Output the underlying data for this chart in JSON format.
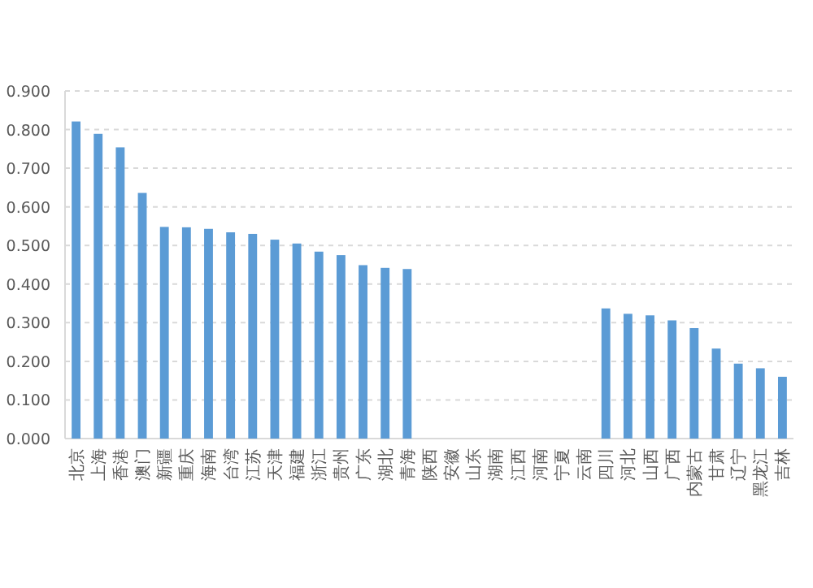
{
  "chart_data": {
    "type": "bar",
    "categories": [
      "北京",
      "上海",
      "香港",
      "澳门",
      "新疆",
      "重庆",
      "海南",
      "台湾",
      "江苏",
      "天津",
      "福建",
      "浙江",
      "贵州",
      "广东",
      "湖北",
      "青海",
      "陕西",
      "安徽",
      "山东",
      "湖南",
      "江西",
      "河南",
      "宁夏",
      "云南",
      "四川",
      "河北",
      "山西",
      "广西",
      "内蒙古",
      "甘肃",
      "辽宁",
      "黑龙江",
      "吉林"
    ],
    "values": [
      0.821,
      0.789,
      0.754,
      0.636,
      0.548,
      0.547,
      0.543,
      0.534,
      0.53,
      0.515,
      0.505,
      0.484,
      0.475,
      0.449,
      0.442,
      0.439,
      null,
      null,
      null,
      null,
      null,
      null,
      null,
      null,
      0.337,
      0.323,
      0.319,
      0.306,
      0.286,
      0.233,
      0.194,
      0.182,
      0.16
    ],
    "color": "#5b9bd5",
    "ylim": [
      0,
      0.9
    ],
    "yticks": [
      {
        "value": 0,
        "label": "0.000"
      },
      {
        "value": 0.1,
        "label": "0.100"
      },
      {
        "value": 0.2,
        "label": "0.200"
      },
      {
        "value": 0.3,
        "label": "0.300"
      },
      {
        "value": 0.4,
        "label": "0.400"
      },
      {
        "value": 0.5,
        "label": "0.500"
      },
      {
        "value": 0.6,
        "label": "0.600"
      },
      {
        "value": 0.7,
        "label": "0.700"
      },
      {
        "value": 0.8,
        "label": "0.800"
      },
      {
        "value": 0.9,
        "label": "0.900"
      }
    ],
    "grid": "y"
  }
}
